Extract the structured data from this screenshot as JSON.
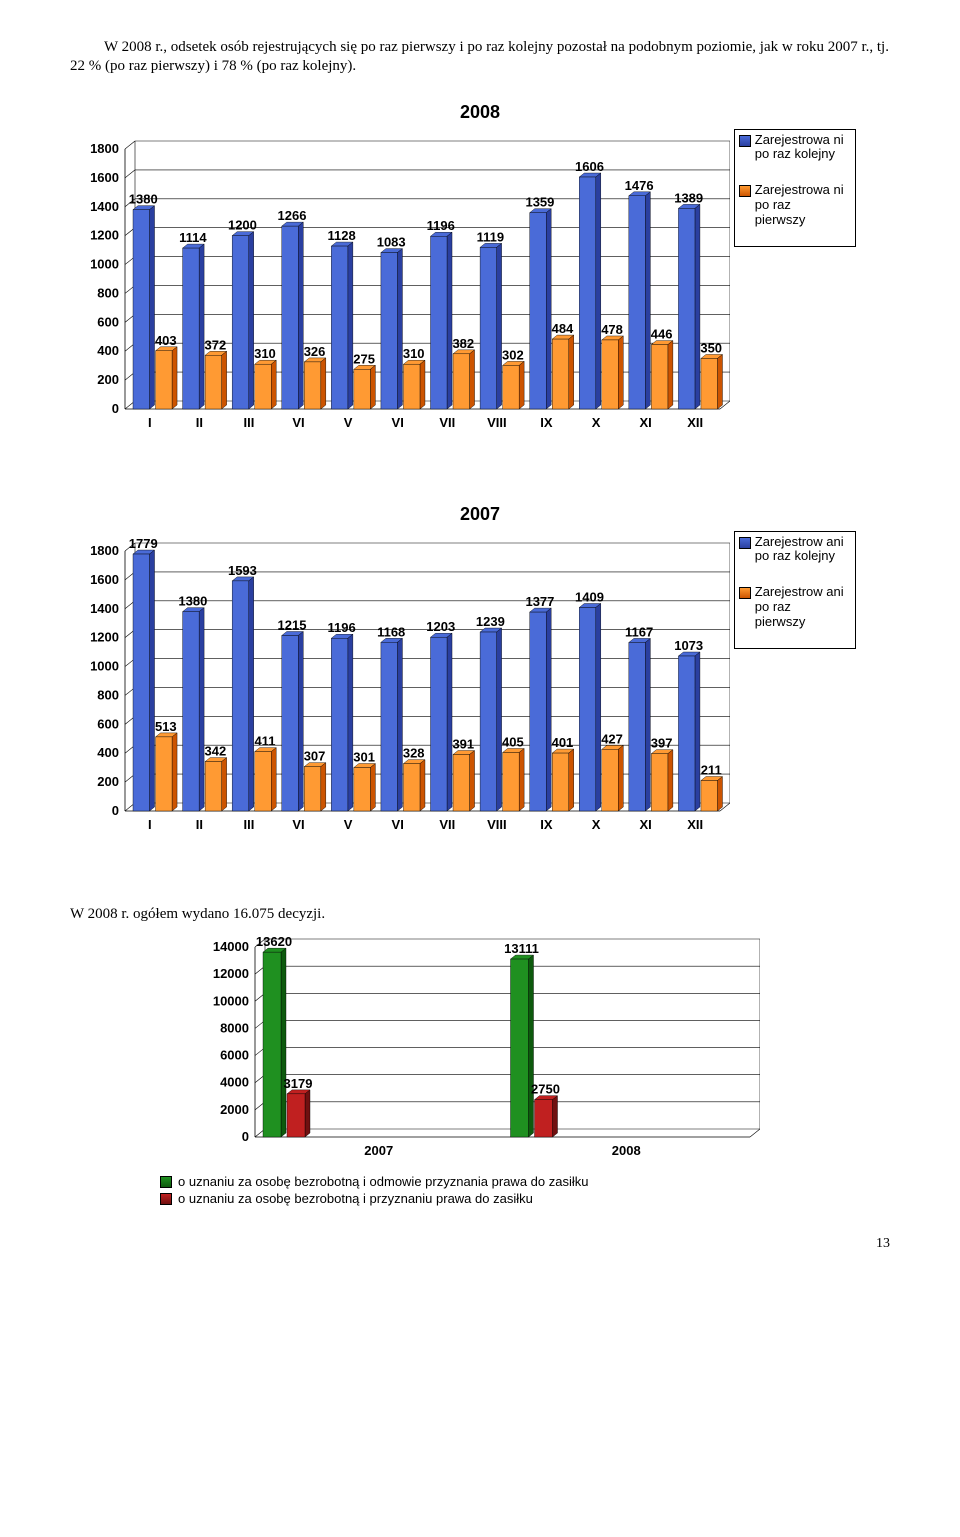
{
  "paragraph": "W 2008 r., odsetek osób rejestrujących się po raz pierwszy i po raz kolejny pozostał na podobnym poziomie, jak w roku 2007 r., tj. 22 % (po raz pierwszy) i 78 % (po raz kolejny).",
  "chart2008": {
    "title": "2008",
    "categories": [
      "I",
      "II",
      "III",
      "VI",
      "V",
      "VI",
      "VII",
      "VIII",
      "IX",
      "X",
      "XI",
      "XII"
    ],
    "series": [
      {
        "name": "Zarejestrowa ni po raz kolejny",
        "color_top": "#4a6bd8",
        "color_side": "#2a3fa0",
        "values": [
          1380,
          1114,
          1200,
          1266,
          1128,
          1083,
          1196,
          1119,
          1359,
          1606,
          1476,
          1389
        ]
      },
      {
        "name": "Zarejestrowa ni po raz pierwszy",
        "color_top": "#ff9a33",
        "color_side": "#cc5400",
        "values": [
          403,
          372,
          310,
          326,
          275,
          310,
          382,
          302,
          484,
          478,
          446,
          350
        ]
      }
    ],
    "y_max": 1800,
    "y_step": 200,
    "axis_font": 13,
    "value_font": 13
  },
  "chart2007": {
    "title": "2007",
    "categories": [
      "I",
      "II",
      "III",
      "VI",
      "V",
      "VI",
      "VII",
      "VIII",
      "IX",
      "X",
      "XI",
      "XII"
    ],
    "series": [
      {
        "name": "Zarejestrow ani po raz kolejny",
        "color_top": "#4a6bd8",
        "color_side": "#2a3fa0",
        "values": [
          1779,
          1380,
          1593,
          1215,
          1196,
          1168,
          1203,
          1239,
          1377,
          1409,
          1167,
          1073
        ]
      },
      {
        "name": "Zarejestrow ani po raz pierwszy",
        "color_top": "#ff9a33",
        "color_side": "#cc5400",
        "values": [
          513,
          342,
          411,
          307,
          301,
          328,
          391,
          405,
          401,
          427,
          397,
          211
        ]
      }
    ],
    "y_max": 1800,
    "y_step": 200,
    "axis_font": 13,
    "value_font": 13
  },
  "sub_heading": "W 2008 r. ogółem wydano  16.075 decyzji.",
  "chartDec": {
    "categories": [
      "2007",
      "2008"
    ],
    "series": [
      {
        "name": "o uznaniu za osobę bezrobotną i odmowie przyznania prawa do zasiłku",
        "color_top": "#1f9020",
        "color_side": "#0d5a0d",
        "values": [
          13620,
          13111
        ]
      },
      {
        "name": "o uznaniu za osobę bezrobotną i przyznaniu prawa do zasiłku",
        "color_top": "#c02020",
        "color_side": "#701010",
        "values": [
          3179,
          2750
        ]
      }
    ],
    "y_max": 14000,
    "y_step": 2000,
    "axis_font": 13,
    "value_font": 13
  },
  "page_number": "13"
}
